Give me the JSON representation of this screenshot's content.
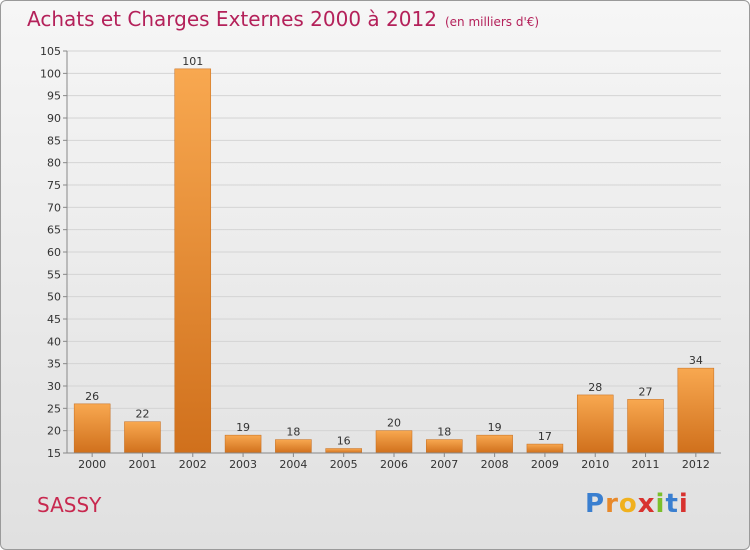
{
  "chart_data": {
    "type": "bar",
    "title": "Achats et Charges Externes 2000 à 2012",
    "unit_label": "(en milliers d'€)",
    "categories": [
      "2000",
      "2001",
      "2002",
      "2003",
      "2004",
      "2005",
      "2006",
      "2007",
      "2008",
      "2009",
      "2010",
      "2011",
      "2012"
    ],
    "values": [
      26,
      22,
      101,
      19,
      18,
      16,
      20,
      18,
      19,
      17,
      28,
      27,
      34
    ],
    "ylim": [
      15,
      105
    ],
    "yticks": [
      15,
      20,
      25,
      30,
      35,
      40,
      45,
      50,
      55,
      60,
      65,
      70,
      75,
      80,
      85,
      90,
      95,
      100,
      105
    ],
    "grid": true,
    "bar_color": "#f39a3a",
    "xlabel": "",
    "ylabel": ""
  },
  "commune": "SASSY",
  "logo": {
    "text": "Proxiti",
    "letter_colors": [
      "#3a7fd0",
      "#e8892a",
      "#f0b11e",
      "#d8322f",
      "#7bbf2b",
      "#3a7fd0",
      "#d8322f"
    ]
  }
}
